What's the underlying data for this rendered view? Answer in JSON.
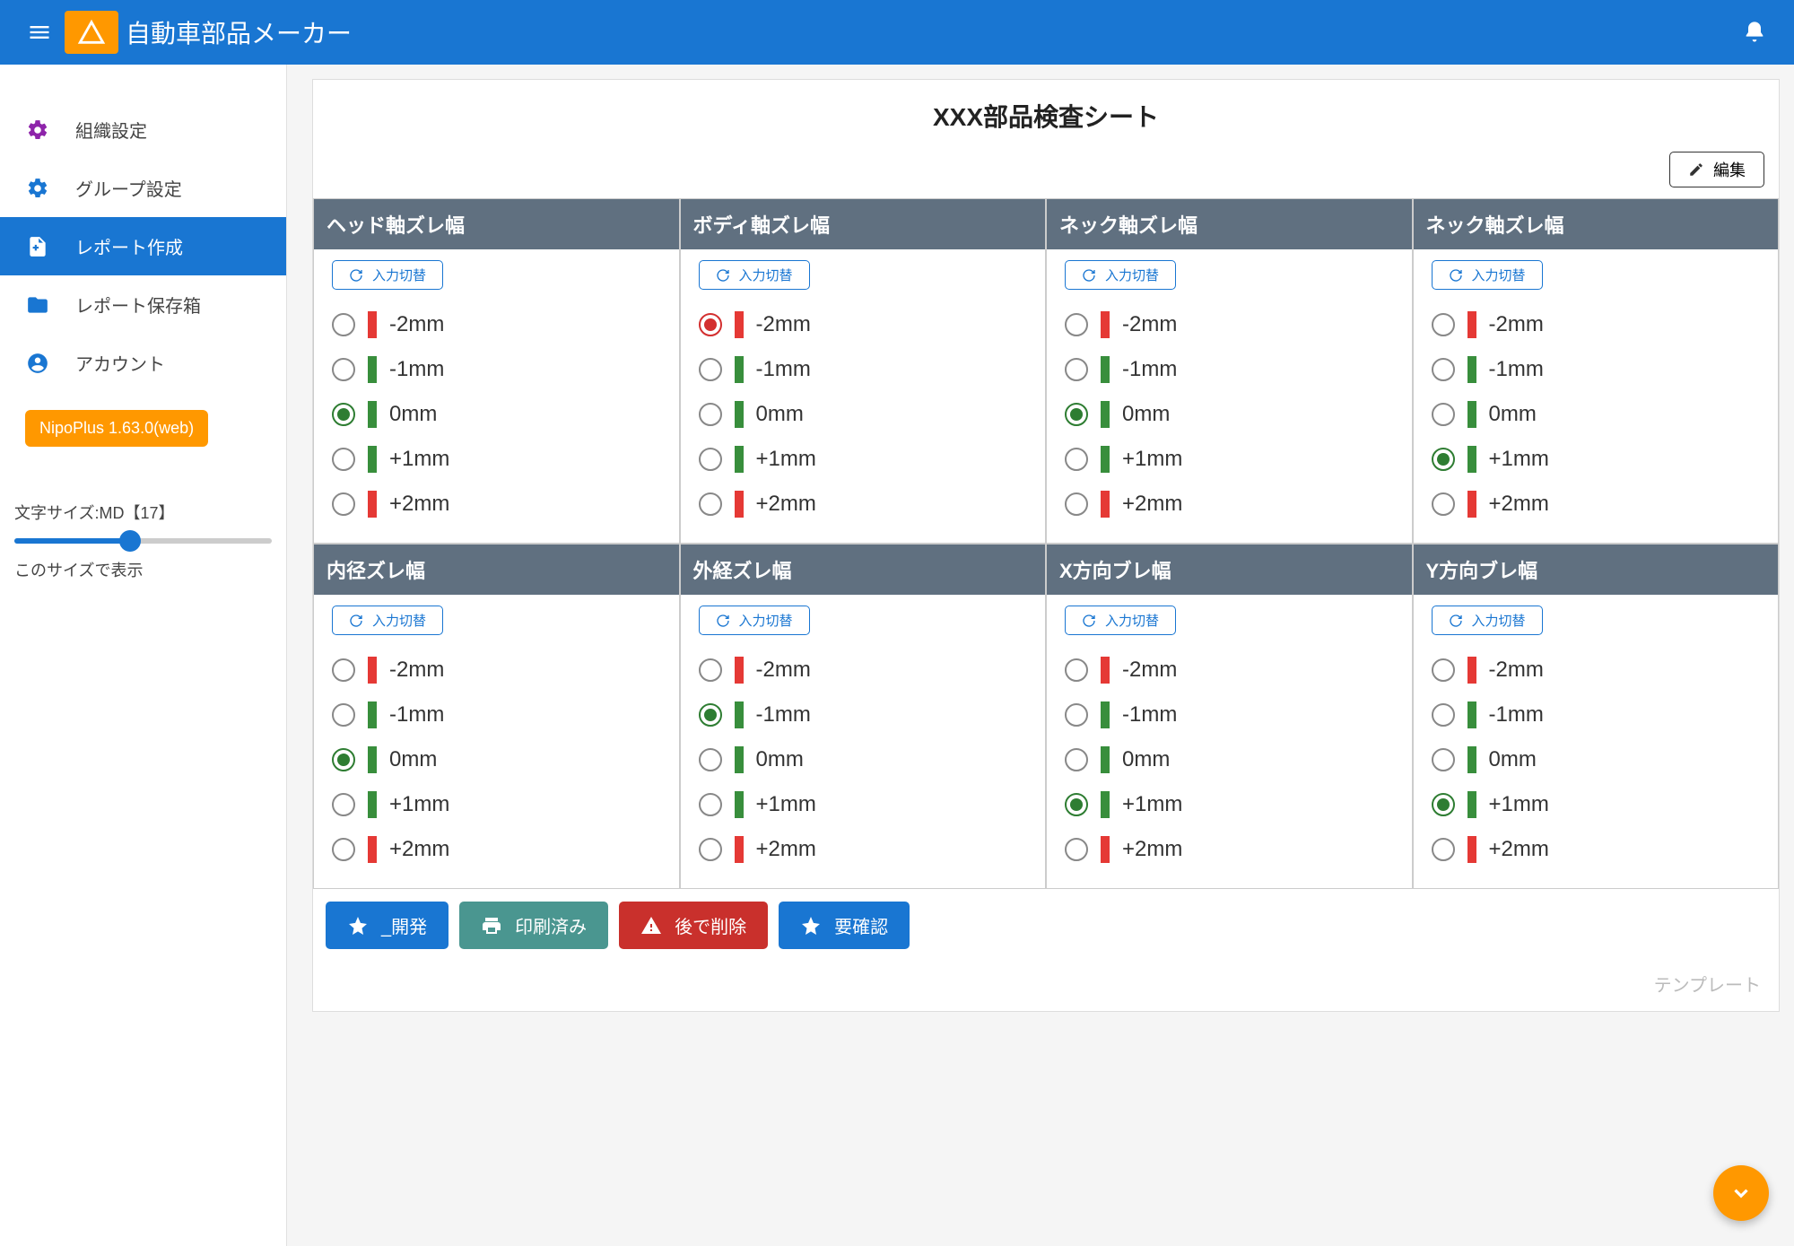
{
  "colors": {
    "primary": "#1976d2",
    "accent": "#ff9800",
    "header_cell": "#607080",
    "red": "#e53935",
    "green": "#388e3c",
    "btn_teal": "#4a9690",
    "btn_red": "#c9302c",
    "btn_blue": "#1976d2"
  },
  "header": {
    "title": "自動車部品メーカー"
  },
  "sidebar": {
    "items": [
      {
        "label": "組織設定",
        "icon": "gear",
        "icon_color": "#8e24aa"
      },
      {
        "label": "グループ設定",
        "icon": "gear",
        "icon_color": "#1976d2"
      },
      {
        "label": "レポート作成",
        "icon": "file-plus",
        "icon_color": "#ffffff",
        "active": true
      },
      {
        "label": "レポート保存箱",
        "icon": "folder",
        "icon_color": "#1976d2"
      },
      {
        "label": "アカウント",
        "icon": "user-circle",
        "icon_color": "#1976d2"
      }
    ],
    "version": "NipoPlus 1.63.0(web)",
    "font_size_label": "文字サイズ:MD【17】",
    "font_size_pct": 45,
    "font_display": "このサイズで表示"
  },
  "sheet": {
    "title": "XXX部品検査シート",
    "edit_label": "編集",
    "toggle_label": "入力切替",
    "options": [
      {
        "label": "-2mm",
        "color": "red"
      },
      {
        "label": "-1mm",
        "color": "green"
      },
      {
        "label": "0mm",
        "color": "green"
      },
      {
        "label": "+1mm",
        "color": "green"
      },
      {
        "label": "+2mm",
        "color": "red"
      }
    ],
    "cells": [
      {
        "title": "ヘッド軸ズレ幅",
        "selected": 2
      },
      {
        "title": "ボディ軸ズレ幅",
        "selected": 0
      },
      {
        "title": "ネック軸ズレ幅",
        "selected": 2
      },
      {
        "title": "ネック軸ズレ幅",
        "selected": 3
      },
      {
        "title": "内径ズレ幅",
        "selected": 2
      },
      {
        "title": "外経ズレ幅",
        "selected": 1
      },
      {
        "title": "X方向ブレ幅",
        "selected": 3
      },
      {
        "title": "Y方向ブレ幅",
        "selected": 3
      }
    ],
    "actions": [
      {
        "label": "_開発",
        "icon": "star",
        "bg": "#1976d2"
      },
      {
        "label": "印刷済み",
        "icon": "printer",
        "bg": "#4a9690"
      },
      {
        "label": "後で削除",
        "icon": "warning",
        "bg": "#c9302c"
      },
      {
        "label": "要確認",
        "icon": "star",
        "bg": "#1976d2"
      }
    ],
    "template_label": "テンプレート"
  }
}
